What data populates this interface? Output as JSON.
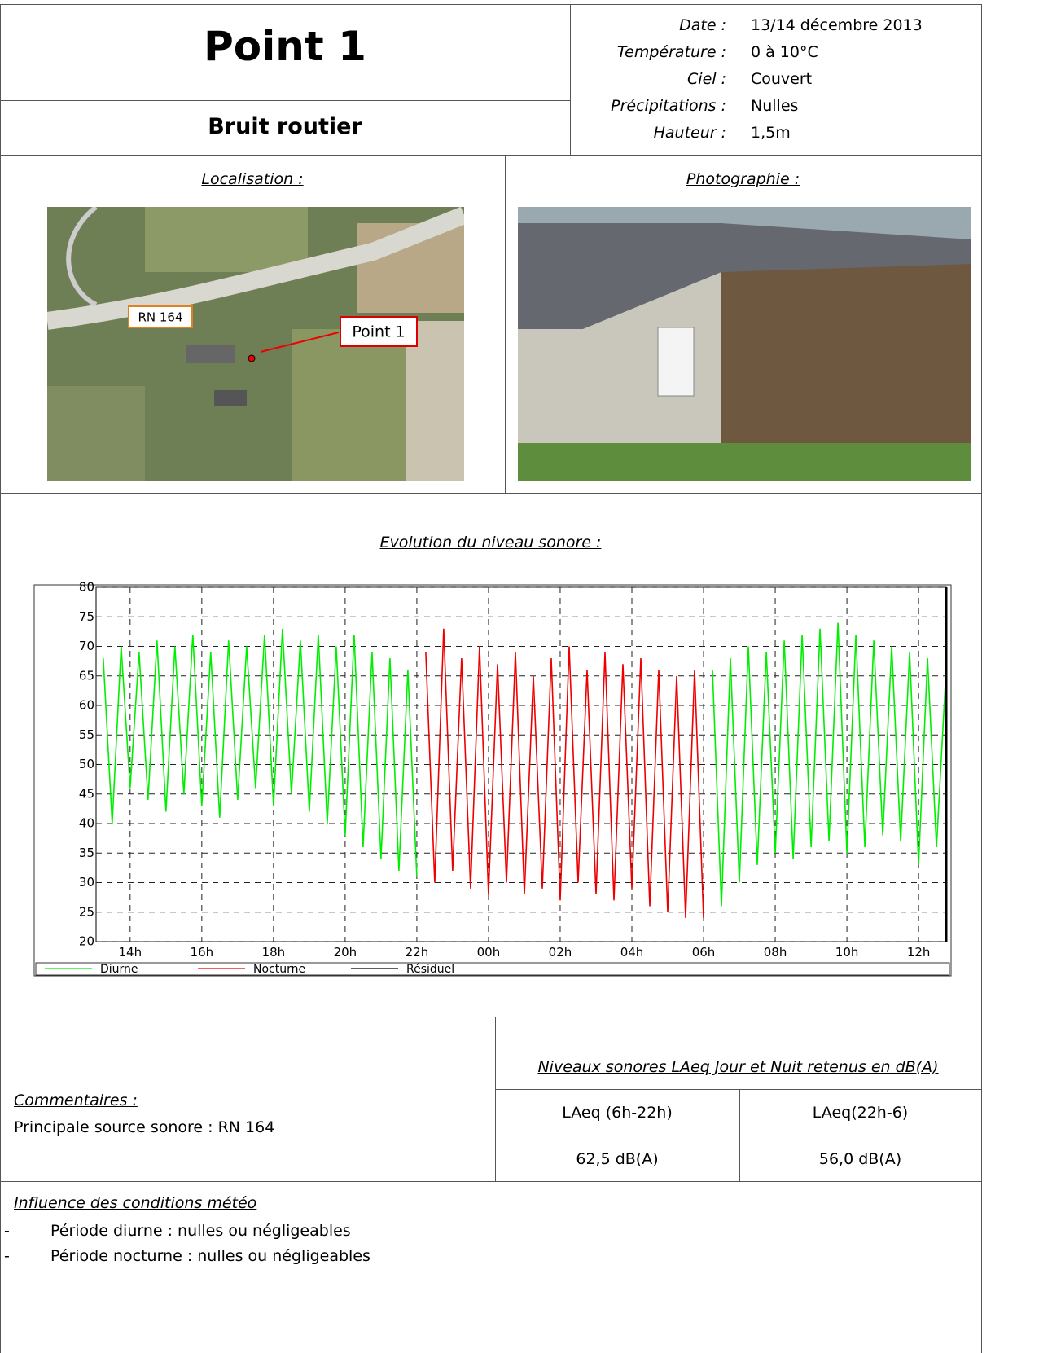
{
  "header": {
    "title": "Point 1",
    "subtitle": "Bruit routier",
    "conditions": [
      {
        "label": "Date :",
        "value": "13/14 décembre 2013"
      },
      {
        "label": "Température :",
        "value": "0 à 10°C"
      },
      {
        "label": "Ciel :",
        "value": "Couvert"
      },
      {
        "label": "Précipitations :",
        "value": "Nulles"
      },
      {
        "label": "Hauteur :",
        "value": "1,5m"
      }
    ]
  },
  "localisation": {
    "heading": "Localisation :",
    "labels": [
      "RN 164",
      "Point 1"
    ]
  },
  "photographie": {
    "heading": "Photographie :"
  },
  "chart_data": {
    "type": "line",
    "title": "Evolution du niveau sonore :",
    "xlim": [
      13.05,
      36.77
    ],
    "xticks": [
      {
        "value": 14,
        "label": "14h"
      },
      {
        "value": 16,
        "label": "16h"
      },
      {
        "value": 18,
        "label": "18h"
      },
      {
        "value": 20,
        "label": "20h"
      },
      {
        "value": 22,
        "label": "22h"
      },
      {
        "value": 24,
        "label": "00h"
      },
      {
        "value": 26,
        "label": "02h"
      },
      {
        "value": 28,
        "label": "04h"
      },
      {
        "value": 30,
        "label": "06h"
      },
      {
        "value": 32,
        "label": "08h"
      },
      {
        "value": 34,
        "label": "10h"
      },
      {
        "value": 36,
        "label": "12h"
      }
    ],
    "ylim": [
      20,
      80
    ],
    "yticks": [
      20,
      25,
      30,
      35,
      40,
      45,
      50,
      55,
      60,
      65,
      70,
      75,
      80
    ],
    "grid": true,
    "series": [
      {
        "name": "Diurne",
        "color": "#00ee00",
        "x": [
          13.25,
          13.5,
          13.75,
          14,
          14.25,
          14.5,
          14.75,
          15,
          15.25,
          15.5,
          15.75,
          16,
          16.25,
          16.5,
          16.75,
          17,
          17.25,
          17.5,
          17.75,
          18,
          18.25,
          18.5,
          18.75,
          19,
          19.25,
          19.5,
          19.75,
          20,
          20.25,
          20.5,
          20.75,
          21,
          21.25,
          21.5,
          21.75,
          22
        ],
        "values": [
          68,
          40,
          70,
          46,
          69,
          44,
          71,
          42,
          70,
          45,
          72,
          43,
          69,
          41,
          71,
          44,
          70,
          46,
          72,
          43,
          73,
          45,
          71,
          42,
          72,
          40,
          70,
          38,
          72,
          36,
          69,
          34,
          68,
          32,
          66,
          31
        ]
      },
      {
        "name": "Nocturne",
        "color": "#ee0000",
        "x": [
          22.25,
          22.5,
          22.75,
          23,
          23.25,
          23.5,
          23.75,
          24,
          24.25,
          24.5,
          24.75,
          25,
          25.25,
          25.5,
          25.75,
          26,
          26.25,
          26.5,
          26.75,
          27,
          27.25,
          27.5,
          27.75,
          28,
          28.25,
          28.5,
          28.75,
          29,
          29.25,
          29.5,
          29.75,
          30
        ],
        "values": [
          69,
          30,
          73,
          32,
          68,
          29,
          70,
          28,
          67,
          30,
          69,
          28,
          65,
          29,
          68,
          27,
          70,
          30,
          66,
          28,
          69,
          27,
          67,
          29,
          68,
          26,
          66,
          25,
          65,
          24,
          66,
          24
        ]
      },
      {
        "name": "Résiduel",
        "color": "#000000",
        "x": [],
        "values": []
      },
      {
        "name": "Diurne",
        "color": "#00ee00",
        "x": [
          30.25,
          30.5,
          30.75,
          31,
          31.25,
          31.5,
          31.75,
          32,
          32.25,
          32.5,
          32.75,
          33,
          33.25,
          33.5,
          33.75,
          34,
          34.25,
          34.5,
          34.75,
          35,
          35.25,
          35.5,
          35.75,
          36,
          36.25,
          36.5,
          36.75
        ],
        "values": [
          66,
          26,
          68,
          30,
          70,
          33,
          69,
          35,
          71,
          34,
          72,
          36,
          73,
          37,
          74,
          35,
          72,
          36,
          71,
          38,
          70,
          37,
          69,
          33,
          68,
          36,
          64
        ]
      }
    ],
    "legend_series": [
      0,
      1,
      2
    ]
  },
  "comments": {
    "heading": "Commentaires :",
    "text": "Principale source sonore : RN 164"
  },
  "levels_table": {
    "caption": "Niveaux sonores LAeq Jour et Nuit retenus en dB(A)",
    "headers": [
      "LAeq (6h-22h)",
      "LAeq(22h-6)"
    ],
    "values": [
      "62,5 dB(A)",
      "56,0 dB(A)"
    ]
  },
  "meteo": {
    "heading": "Influence des conditions météo",
    "bullet": "-",
    "items": [
      "Période diurne : nulles ou négligeables",
      "Période nocturne : nulles ou négligeables"
    ]
  }
}
